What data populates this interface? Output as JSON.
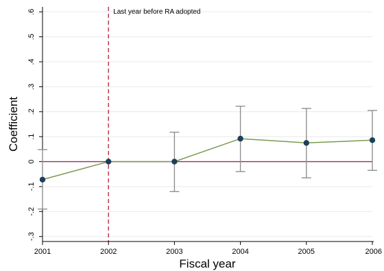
{
  "chart_data": {
    "type": "line",
    "title": "",
    "xlabel": "Fiscal year",
    "ylabel": "Coefficient",
    "x": [
      2001,
      2002,
      2003,
      2004,
      2005,
      2006
    ],
    "xlim": [
      2001,
      2006
    ],
    "ylim": [
      -0.32,
      0.62
    ],
    "yticks": [
      -0.3,
      -0.2,
      -0.1,
      0,
      0.1,
      0.2,
      0.3,
      0.4,
      0.5,
      0.6
    ],
    "ytick_labels": [
      "-.3",
      "-.2",
      "-.1",
      "0",
      ".1",
      ".2",
      ".3",
      ".4",
      ".5",
      ".6"
    ],
    "xtick_labels": [
      "2001",
      "2002",
      "2003",
      "2004",
      "2005",
      "2006"
    ],
    "series": [
      {
        "values": [
          -0.072,
          0.0,
          0.0,
          0.092,
          0.075,
          0.086
        ],
        "ci_low": [
          -0.19,
          0.0,
          -0.12,
          -0.04,
          -0.065,
          -0.035
        ],
        "ci_high": [
          0.048,
          0.0,
          0.118,
          0.222,
          0.213,
          0.205
        ]
      }
    ],
    "reference_lines": {
      "horizontal_y": 0,
      "vertical_x": 2002,
      "vertical_label": "Last year before RA adopted"
    },
    "grid": true,
    "legend": "none",
    "colors": {
      "line": "#7a9a4e",
      "marker": "#1c3f5a",
      "ci": "#909090",
      "zero_line": "#9b2d5a",
      "vline": "#b01c3c",
      "grid": "#e8e8e8"
    }
  }
}
